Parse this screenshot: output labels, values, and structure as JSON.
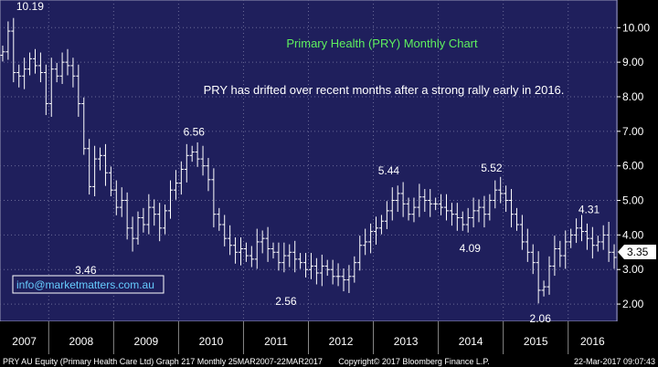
{
  "chart_data": {
    "type": "ohlc",
    "title": "Primary Health (PRY) Monthly Chart",
    "subtitle": "PRY has drifted over recent months after a strong rally early in 2016.",
    "footer_left": "PRY AU Equity (Primary Health Care Ltd) Graph 217  Monthly 25MAR2007-22MAR2017",
    "footer_center": "Copyright© 2017 Bloomberg Finance L.P.",
    "footer_right": "22-Mar-2017 09:07:43",
    "watermark": "info@marketmatters.com.au",
    "last_price": "3.35",
    "y_axis": {
      "min": 1.5,
      "max": 10.8,
      "ticks": [
        "2.00",
        "3.00",
        "4.00",
        "5.00",
        "6.00",
        "7.00",
        "8.00",
        "9.00",
        "10.00"
      ]
    },
    "x_axis": {
      "labels": [
        "2007",
        "2008",
        "2009",
        "2010",
        "2011",
        "2012",
        "2013",
        "2014",
        "2015",
        "2016"
      ]
    },
    "annotations": [
      {
        "text": "10.19",
        "value": 10.19
      },
      {
        "text": "3.46",
        "value": 3.46
      },
      {
        "text": "6.56",
        "value": 6.56
      },
      {
        "text": "2.56",
        "value": 2.56
      },
      {
        "text": "5.44",
        "value": 5.44
      },
      {
        "text": "4.09",
        "value": 4.09
      },
      {
        "text": "5.52",
        "value": 5.52
      },
      {
        "text": "2.06",
        "value": 2.06
      },
      {
        "text": "4.31",
        "value": 4.31
      }
    ],
    "close_series": [
      9.3,
      9.9,
      8.7,
      8.6,
      8.8,
      9.1,
      8.9,
      8.7,
      7.8,
      8.8,
      8.6,
      9.0,
      8.9,
      8.6,
      7.8,
      6.5,
      5.4,
      6.2,
      6.3,
      5.8,
      5.3,
      4.8,
      5.0,
      4.2,
      3.9,
      4.5,
      4.3,
      4.8,
      4.6,
      4.2,
      4.7,
      5.3,
      5.5,
      5.9,
      6.3,
      6.4,
      6.2,
      6.0,
      5.6,
      4.6,
      4.3,
      3.9,
      3.7,
      3.5,
      3.6,
      3.4,
      3.3,
      3.8,
      3.9,
      3.6,
      3.5,
      3.2,
      3.4,
      3.5,
      3.3,
      3.2,
      3.0,
      3.1,
      2.9,
      3.1,
      3.0,
      2.8,
      2.8,
      2.7,
      2.8,
      3.2,
      3.7,
      3.8,
      4.1,
      4.2,
      4.4,
      4.7,
      5.0,
      5.2,
      4.9,
      4.6,
      4.8,
      5.1,
      5.0,
      4.9,
      4.9,
      4.8,
      4.7,
      4.6,
      4.5,
      4.3,
      4.5,
      4.7,
      4.8,
      4.6,
      5.0,
      5.3,
      5.2,
      5.0,
      4.6,
      4.3,
      3.8,
      3.5,
      3.2,
      2.4,
      2.5,
      3.1,
      3.6,
      3.4,
      3.8,
      4.0,
      4.2,
      4.1,
      3.9,
      3.7,
      3.8,
      4.0,
      3.5,
      3.35
    ]
  }
}
